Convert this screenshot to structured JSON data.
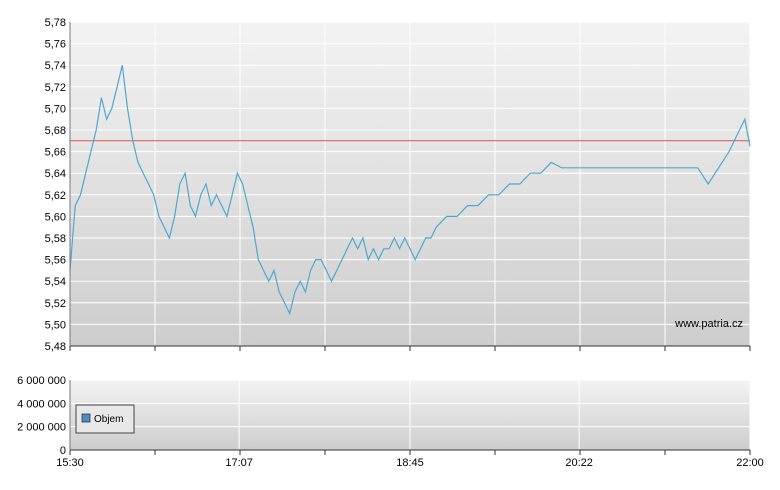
{
  "colors": {
    "line": "#4fa7cf",
    "reference": "#e05050",
    "grid": "#ffffff",
    "plot_top": "#f3f3f3",
    "plot_bottom": "#cdcdcd",
    "volume_swatch": "#4a8fc4",
    "watermark": "#1a2a8a"
  },
  "chart_data": [
    {
      "type": "line",
      "watermark": "www.patria.cz",
      "y_ticks": [
        "5,78",
        "5,76",
        "5,74",
        "5,72",
        "5,70",
        "5,68",
        "5,66",
        "5,64",
        "5,62",
        "5,60",
        "5,58",
        "5,56",
        "5,54",
        "5,52",
        "5,50",
        "5,48"
      ],
      "ylim": [
        5.48,
        5.78
      ],
      "xlim": [
        "15:30",
        "22:00"
      ],
      "grid": true,
      "reference_line": 5.67,
      "series": [
        {
          "x": [
            "15:30",
            "15:33",
            "15:36",
            "15:39",
            "15:42",
            "15:45",
            "15:48",
            "15:51",
            "15:54",
            "15:57",
            "16:00",
            "16:03",
            "16:06",
            "16:09",
            "16:12",
            "16:15",
            "16:18",
            "16:21",
            "16:24",
            "16:27",
            "16:30",
            "16:33",
            "16:36",
            "16:39",
            "16:42",
            "16:45",
            "16:48",
            "16:51",
            "16:54",
            "16:57",
            "17:00",
            "17:03",
            "17:06",
            "17:09",
            "17:12",
            "17:15",
            "17:18",
            "17:21",
            "17:24",
            "17:27",
            "17:30",
            "17:33",
            "17:36",
            "17:39",
            "17:42",
            "17:45",
            "17:48",
            "17:51",
            "17:54",
            "17:57",
            "18:00",
            "18:03",
            "18:06",
            "18:09",
            "18:12",
            "18:15",
            "18:18",
            "18:21",
            "18:24",
            "18:27",
            "18:30",
            "18:33",
            "18:36",
            "18:39",
            "18:42",
            "18:45",
            "18:48",
            "18:51",
            "18:54",
            "18:57",
            "19:00",
            "19:06",
            "19:12",
            "19:18",
            "19:24",
            "19:30",
            "19:36",
            "19:42",
            "19:48",
            "19:54",
            "20:00",
            "20:06",
            "20:12",
            "20:18",
            "20:24",
            "20:30",
            "20:36",
            "20:42",
            "20:48",
            "20:54",
            "21:00",
            "21:06",
            "21:12",
            "21:18",
            "21:24",
            "21:30",
            "21:36",
            "21:40",
            "21:44",
            "21:48",
            "21:51",
            "21:54",
            "21:57",
            "22:00"
          ],
          "values": [
            5.55,
            5.61,
            5.62,
            5.64,
            5.66,
            5.68,
            5.71,
            5.69,
            5.7,
            5.72,
            5.74,
            5.7,
            5.67,
            5.65,
            5.64,
            5.63,
            5.62,
            5.6,
            5.59,
            5.58,
            5.6,
            5.63,
            5.64,
            5.61,
            5.6,
            5.62,
            5.63,
            5.61,
            5.62,
            5.61,
            5.6,
            5.62,
            5.64,
            5.63,
            5.61,
            5.59,
            5.56,
            5.55,
            5.54,
            5.55,
            5.53,
            5.52,
            5.51,
            5.53,
            5.54,
            5.53,
            5.55,
            5.56,
            5.56,
            5.55,
            5.54,
            5.55,
            5.56,
            5.57,
            5.58,
            5.57,
            5.58,
            5.56,
            5.57,
            5.56,
            5.57,
            5.57,
            5.58,
            5.57,
            5.58,
            5.57,
            5.56,
            5.57,
            5.58,
            5.58,
            5.59,
            5.6,
            5.6,
            5.61,
            5.61,
            5.62,
            5.62,
            5.63,
            5.63,
            5.64,
            5.64,
            5.65,
            5.645,
            5.645,
            5.645,
            5.645,
            5.645,
            5.645,
            5.645,
            5.645,
            5.645,
            5.645,
            5.645,
            5.645,
            5.645,
            5.645,
            5.63,
            5.64,
            5.65,
            5.66,
            5.67,
            5.68,
            5.69,
            5.665
          ]
        }
      ]
    },
    {
      "type": "bar",
      "legend": "Objem",
      "legend_position": "left",
      "y_ticks": [
        "6 000 000",
        "4 000 000",
        "2 000 000",
        "0"
      ],
      "ylim": [
        0,
        6000000
      ],
      "x_ticks": [
        "15:30",
        "17:07",
        "18:45",
        "20:22",
        "22:00"
      ],
      "xlim": [
        "15:30",
        "22:00"
      ],
      "grid": true,
      "values": []
    }
  ]
}
